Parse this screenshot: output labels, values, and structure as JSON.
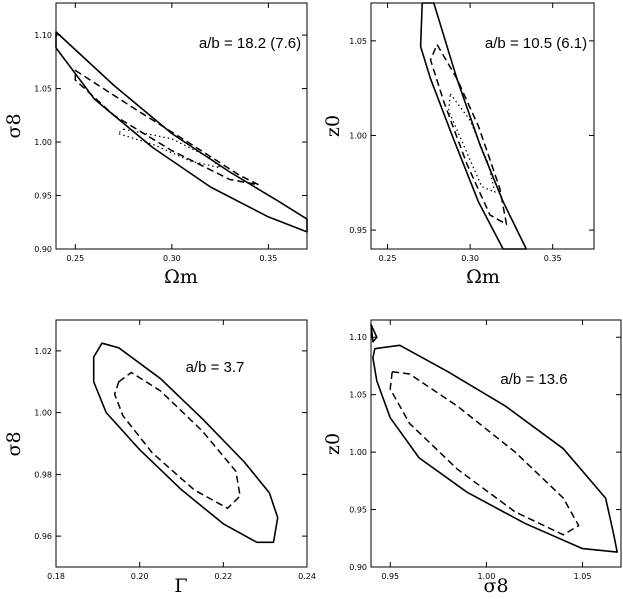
{
  "chart_data": [
    {
      "type": "contour",
      "panel": "top-left",
      "xlabel": "Ωm",
      "ylabel": "σ8",
      "annotation": "a/b = 18.2 (7.6)",
      "xlim": [
        0.24,
        0.37
      ],
      "ylim": [
        0.9,
        1.13
      ],
      "xticks": [
        0.25,
        0.3,
        0.35
      ],
      "xtick_labels": [
        "0.25",
        "0.30",
        "0.35"
      ],
      "yticks": [
        0.9,
        0.95,
        1.0,
        1.05,
        1.1
      ],
      "ytick_labels": [
        "0.90",
        "0.95",
        "1.00",
        "1.05",
        "1.10"
      ],
      "contours": [
        {
          "style": "solid",
          "points": [
            [
              0.24,
              1.103
            ],
            [
              0.27,
              1.053
            ],
            [
              0.3,
              1.008
            ],
            [
              0.33,
              0.972
            ],
            [
              0.355,
              0.945
            ],
            [
              0.37,
              0.928
            ],
            [
              0.37,
              0.916
            ],
            [
              0.35,
              0.93
            ],
            [
              0.32,
              0.958
            ],
            [
              0.29,
              0.995
            ],
            [
              0.26,
              1.04
            ],
            [
              0.24,
              1.088
            ]
          ]
        },
        {
          "style": "dashed",
          "points": [
            [
              0.25,
              1.067
            ],
            [
              0.28,
              1.032
            ],
            [
              0.31,
              0.998
            ],
            [
              0.335,
              0.969
            ],
            [
              0.345,
              0.96
            ],
            [
              0.33,
              0.965
            ],
            [
              0.3,
              0.992
            ],
            [
              0.27,
              1.025
            ],
            [
              0.25,
              1.058
            ]
          ]
        },
        {
          "style": "dotted",
          "points": [
            [
              0.275,
              1.012
            ],
            [
              0.3,
              1.003
            ],
            [
              0.32,
              0.985
            ],
            [
              0.325,
              0.976
            ],
            [
              0.31,
              0.982
            ],
            [
              0.29,
              0.998
            ],
            [
              0.272,
              1.008
            ]
          ]
        }
      ]
    },
    {
      "type": "contour",
      "panel": "top-right",
      "xlabel": "Ωm",
      "ylabel": "z0",
      "annotation": "a/b = 10.5 (6.1)",
      "xlim": [
        0.24,
        0.375
      ],
      "ylim": [
        0.94,
        1.07
      ],
      "xticks": [
        0.25,
        0.3,
        0.35
      ],
      "xtick_labels": [
        "0.25",
        "0.30",
        "0.35"
      ],
      "yticks": [
        0.95,
        1.0,
        1.05
      ],
      "ytick_labels": [
        "0.95",
        "1.00",
        "1.05"
      ],
      "contours": [
        {
          "style": "solid",
          "points": [
            [
              0.278,
              1.07
            ],
            [
              0.292,
              1.03
            ],
            [
              0.306,
              0.995
            ],
            [
              0.32,
              0.965
            ],
            [
              0.334,
              0.94
            ],
            [
              0.32,
              0.94
            ],
            [
              0.305,
              0.965
            ],
            [
              0.29,
              0.998
            ],
            [
              0.276,
              1.03
            ],
            [
              0.27,
              1.047
            ],
            [
              0.271,
              1.07
            ]
          ]
        },
        {
          "style": "dashed",
          "points": [
            [
              0.28,
              1.048
            ],
            [
              0.292,
              1.03
            ],
            [
              0.305,
              1.005
            ],
            [
              0.318,
              0.972
            ],
            [
              0.322,
              0.953
            ],
            [
              0.312,
              0.958
            ],
            [
              0.298,
              0.985
            ],
            [
              0.284,
              1.018
            ],
            [
              0.276,
              1.04
            ]
          ]
        },
        {
          "style": "dotted",
          "points": [
            [
              0.288,
              1.022
            ],
            [
              0.3,
              1.008
            ],
            [
              0.311,
              0.985
            ],
            [
              0.315,
              0.97
            ],
            [
              0.307,
              0.973
            ],
            [
              0.296,
              0.995
            ],
            [
              0.287,
              1.013
            ]
          ]
        }
      ]
    },
    {
      "type": "contour",
      "panel": "bottom-left",
      "xlabel": "Γ",
      "ylabel": "σ8",
      "annotation": "a/b = 3.7",
      "xlim": [
        0.18,
        0.24
      ],
      "ylim": [
        0.95,
        1.03
      ],
      "xticks": [
        0.18,
        0.2,
        0.22,
        0.24
      ],
      "xtick_labels": [
        "0.18",
        "0.20",
        "0.22",
        "0.24"
      ],
      "yticks": [
        0.96,
        0.98,
        1.0,
        1.02
      ],
      "ytick_labels": [
        "0.96",
        "0.98",
        "1.00",
        "1.02"
      ],
      "contours": [
        {
          "style": "solid",
          "points": [
            [
              0.189,
              1.018
            ],
            [
              0.191,
              1.0225
            ],
            [
              0.195,
              1.021
            ],
            [
              0.205,
              1.011
            ],
            [
              0.215,
              0.998
            ],
            [
              0.225,
              0.984
            ],
            [
              0.231,
              0.974
            ],
            [
              0.233,
              0.966
            ],
            [
              0.232,
              0.958
            ],
            [
              0.228,
              0.958
            ],
            [
              0.22,
              0.964
            ],
            [
              0.21,
              0.975
            ],
            [
              0.2,
              0.988
            ],
            [
              0.192,
              1.0
            ],
            [
              0.189,
              1.01
            ]
          ]
        },
        {
          "style": "dashed",
          "points": [
            [
              0.195,
              1.01
            ],
            [
              0.198,
              1.013
            ],
            [
              0.205,
              1.007
            ],
            [
              0.215,
              0.994
            ],
            [
              0.223,
              0.981
            ],
            [
              0.224,
              0.973
            ],
            [
              0.221,
              0.969
            ],
            [
              0.213,
              0.975
            ],
            [
              0.203,
              0.987
            ],
            [
              0.196,
              0.999
            ],
            [
              0.194,
              1.006
            ]
          ]
        }
      ]
    },
    {
      "type": "contour",
      "panel": "bottom-right",
      "xlabel": "σ8",
      "ylabel": "z0",
      "annotation": "a/b = 13.6",
      "xlim": [
        0.94,
        1.07
      ],
      "ylim": [
        0.9,
        1.115
      ],
      "xticks": [
        0.95,
        1.0,
        1.05
      ],
      "xtick_labels": [
        "0.95",
        "1.00",
        "1.05"
      ],
      "yticks": [
        0.9,
        0.95,
        1.0,
        1.05,
        1.1
      ],
      "ytick_labels": [
        "0.90",
        "0.95",
        "1.00",
        "1.05",
        "1.10"
      ],
      "contours": [
        {
          "style": "solid",
          "points": [
            [
              0.942,
              1.09
            ],
            [
              0.955,
              1.093
            ],
            [
              0.98,
              1.07
            ],
            [
              1.01,
              1.04
            ],
            [
              1.04,
              1.003
            ],
            [
              1.062,
              0.96
            ],
            [
              1.066,
              0.93
            ],
            [
              1.068,
              0.913
            ],
            [
              1.05,
              0.916
            ],
            [
              1.02,
              0.938
            ],
            [
              0.99,
              0.965
            ],
            [
              0.965,
              0.995
            ],
            [
              0.95,
              1.03
            ],
            [
              0.943,
              1.062
            ],
            [
              0.941,
              1.082
            ]
          ]
        },
        {
          "style": "dashed",
          "points": [
            [
              0.951,
              1.07
            ],
            [
              0.96,
              1.068
            ],
            [
              0.985,
              1.04
            ],
            [
              1.015,
              1.0
            ],
            [
              1.04,
              0.96
            ],
            [
              1.048,
              0.936
            ],
            [
              1.04,
              0.928
            ],
            [
              1.015,
              0.948
            ],
            [
              0.985,
              0.985
            ],
            [
              0.96,
              1.025
            ],
            [
              0.95,
              1.055
            ]
          ]
        },
        {
          "style": "solid",
          "points": [
            [
              0.94,
              1.111
            ],
            [
              0.943,
              1.1
            ],
            [
              0.941,
              1.096
            ]
          ]
        }
      ]
    }
  ]
}
